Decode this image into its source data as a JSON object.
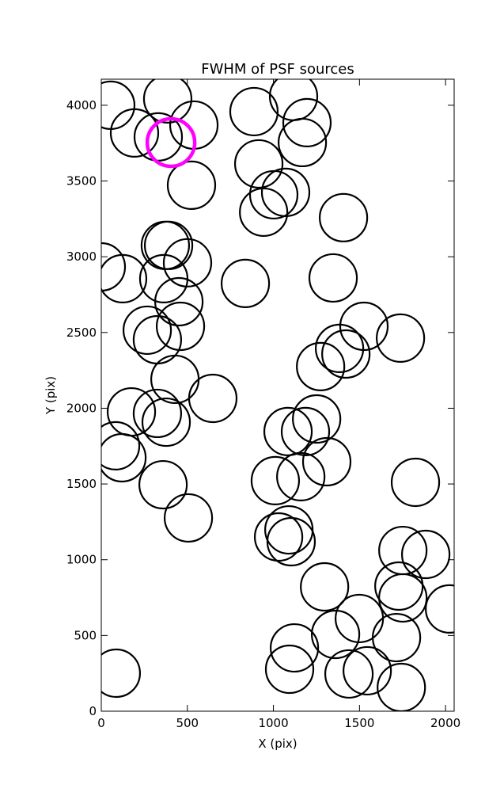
{
  "chart_data": {
    "type": "scatter",
    "title": "FWHM of PSF sources",
    "xlabel": "X (pix)",
    "ylabel": "Y (pix)",
    "xlim": [
      0,
      2050
    ],
    "ylim": [
      0,
      4172
    ],
    "xticks": [
      0,
      500,
      1000,
      1500,
      2000
    ],
    "yticks": [
      0,
      500,
      1000,
      1500,
      2000,
      2500,
      3000,
      3500,
      4000
    ],
    "xtick_labels": [
      "0",
      "500",
      "1000",
      "1500",
      "2000"
    ],
    "ytick_labels": [
      "0",
      "500",
      "1000",
      "1500",
      "2000",
      "2500",
      "3000",
      "3500",
      "4000"
    ],
    "grid": false,
    "marker": "open circle",
    "colors": {
      "default": "#000000",
      "highlight": "#ff00ff"
    },
    "points": [
      [
        55,
        4000
      ],
      [
        386,
        4042
      ],
      [
        538,
        3869
      ],
      [
        193,
        3817
      ],
      [
        331,
        3791
      ],
      [
        524,
        3472
      ],
      [
        887,
        3958
      ],
      [
        1117,
        4058
      ],
      [
        1195,
        3885
      ],
      [
        1168,
        3754
      ],
      [
        915,
        3613
      ],
      [
        1002,
        3409
      ],
      [
        1071,
        3425
      ],
      [
        943,
        3294
      ],
      [
        1407,
        3258
      ],
      [
        0,
        2933
      ],
      [
        124,
        2855
      ],
      [
        372,
        3075
      ],
      [
        391,
        3075
      ],
      [
        501,
        2960
      ],
      [
        363,
        2855
      ],
      [
        451,
        2703
      ],
      [
        837,
        2824
      ],
      [
        1347,
        2860
      ],
      [
        267,
        2515
      ],
      [
        326,
        2452
      ],
      [
        460,
        2541
      ],
      [
        1526,
        2541
      ],
      [
        1738,
        2463
      ],
      [
        1384,
        2395
      ],
      [
        1421,
        2358
      ],
      [
        1274,
        2275
      ],
      [
        428,
        2191
      ],
      [
        648,
        2065
      ],
      [
        175,
        1976
      ],
      [
        326,
        1966
      ],
      [
        377,
        1908
      ],
      [
        83,
        1752
      ],
      [
        120,
        1673
      ],
      [
        1251,
        1929
      ],
      [
        1085,
        1846
      ],
      [
        1186,
        1846
      ],
      [
        1310,
        1647
      ],
      [
        1011,
        1522
      ],
      [
        1159,
        1548
      ],
      [
        1825,
        1511
      ],
      [
        359,
        1495
      ],
      [
        506,
        1276
      ],
      [
        1090,
        1197
      ],
      [
        1030,
        1150
      ],
      [
        1103,
        1119
      ],
      [
        1752,
        1061
      ],
      [
        1885,
        1035
      ],
      [
        1297,
        821
      ],
      [
        1729,
        826
      ],
      [
        1752,
        748
      ],
      [
        2023,
        675
      ],
      [
        1499,
        612
      ],
      [
        1361,
        507
      ],
      [
        1715,
        486
      ],
      [
        1122,
        418
      ],
      [
        1094,
        277
      ],
      [
        1439,
        246
      ],
      [
        1545,
        267
      ],
      [
        1743,
        157
      ],
      [
        87,
        251
      ]
    ],
    "highlight_points": [
      [
        405,
        3754
      ]
    ]
  }
}
